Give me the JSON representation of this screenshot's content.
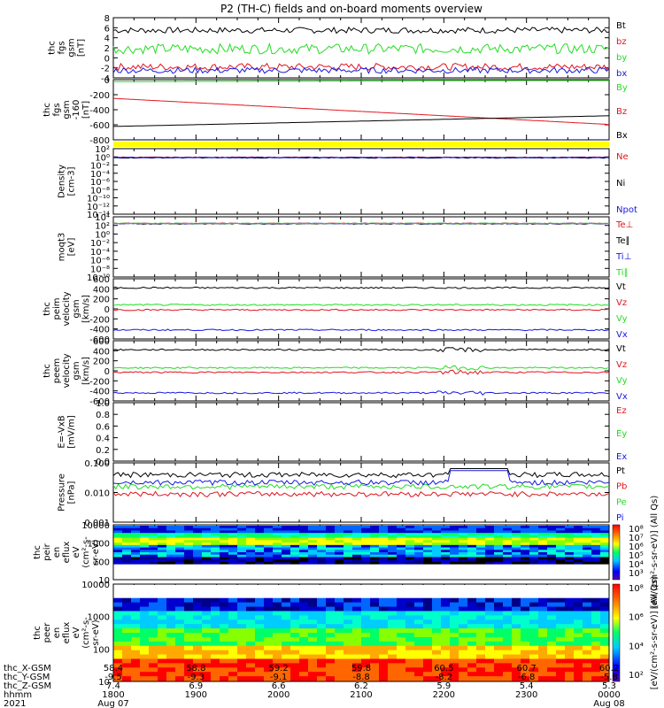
{
  "title": "P2 (TH-C) fields and on-board moments overview",
  "x_rows": [
    {
      "label": "thc_X-GSM",
      "values": [
        "58.4",
        "58.8",
        "59.2",
        "59.8",
        "60.5",
        "60.7",
        "60.2"
      ]
    },
    {
      "label": "thc_Y-GSM",
      "values": [
        "-9.5",
        "-9.3",
        "-9.1",
        "-8.8",
        "-8.2",
        "-6.8",
        "-5.8"
      ]
    },
    {
      "label": "thc_Z-GSM",
      "values": [
        "7.4",
        "6.9",
        "6.6",
        "6.2",
        "5.9",
        "5.4",
        "5.3"
      ]
    },
    {
      "label": "hhmm",
      "values": [
        "1800",
        "1900",
        "2000",
        "2100",
        "2200",
        "2300",
        "0000"
      ]
    }
  ],
  "x_date_start": "Aug 07",
  "x_date_end": "Aug 08",
  "year": "2021",
  "colors": {
    "black": "#000000",
    "red": "#e0141e",
    "green": "#22dd22",
    "blue": "#1818e0",
    "yellow": "#ffff00"
  },
  "chart_data": [
    {
      "type": "line",
      "ylabel": [
        "thc",
        "fgs",
        "gsm",
        "[nT]"
      ],
      "ylim": [
        -4,
        8
      ],
      "yticks": [
        "8",
        "6",
        "4",
        "2",
        "0",
        "-2",
        "-4"
      ],
      "series": [
        {
          "name": "Bt",
          "color": "black",
          "mean": 5.5,
          "noise": 0.6
        },
        {
          "name": "bz",
          "color": "red",
          "mean": -1.8,
          "noise": 0.7
        },
        {
          "name": "by",
          "color": "green",
          "mean": 1.8,
          "noise": 1.0
        },
        {
          "name": "bx",
          "color": "blue",
          "mean": -2.5,
          "noise": 0.6
        }
      ]
    },
    {
      "type": "line",
      "ylabel": [
        "thc",
        "fgs",
        "gsm",
        "-160",
        "[nT]"
      ],
      "ylim": [
        -900,
        0
      ],
      "yticks": [
        "0",
        "-200",
        "-400",
        "-600",
        "-800"
      ],
      "series": [
        {
          "name": "By",
          "color": "green",
          "start": -30,
          "end": -10
        },
        {
          "name": "Bz",
          "color": "red",
          "start": -280,
          "end": -670
        },
        {
          "name": "Bx",
          "color": "black",
          "start": -700,
          "end": -540
        }
      ]
    },
    {
      "type": "bar",
      "band": "state",
      "color": "yellow"
    },
    {
      "type": "line",
      "ylabel": [
        "Density",
        "[cm-3]"
      ],
      "ylog": [
        -14,
        2
      ],
      "yticks": [
        "10²",
        "10⁰",
        "10⁻²",
        "10⁻⁴",
        "10⁻⁶",
        "10⁻⁸",
        "10⁻¹⁰",
        "10⁻¹²",
        "10⁻¹⁴"
      ],
      "series": [
        {
          "name": "Ne",
          "color": "red",
          "value": 0.8
        },
        {
          "name": "Ni",
          "color": "black",
          "value": 0.6
        },
        {
          "name": "Npot",
          "color": "blue",
          "value": 0.7
        }
      ]
    },
    {
      "type": "line",
      "ylabel": [
        "moqt3",
        "[eV]"
      ],
      "ylog": [
        -10,
        4
      ],
      "yticks": [
        "10⁴",
        "10²",
        "10⁰",
        "10⁻²",
        "10⁻⁴",
        "10⁻⁶",
        "10⁻⁸",
        "10⁻¹⁰"
      ],
      "series": [
        {
          "name": "Te⊥",
          "color": "red",
          "value": 300
        },
        {
          "name": "Te∥",
          "color": "black",
          "value": 250
        },
        {
          "name": "Ti⊥",
          "color": "blue",
          "value": 280
        },
        {
          "name": "Ti∥",
          "color": "green",
          "value": 290
        }
      ]
    },
    {
      "type": "line",
      "ylabel": [
        "thc",
        "peim",
        "velocity",
        "gsm",
        "[km/s]"
      ],
      "ylim": [
        -600,
        600
      ],
      "yticks": [
        "600",
        "400",
        "200",
        "0",
        "-200",
        "-400",
        "-600"
      ],
      "series": [
        {
          "name": "Vt",
          "color": "black",
          "value": 420
        },
        {
          "name": "Vz",
          "color": "red",
          "value": -20
        },
        {
          "name": "Vy",
          "color": "green",
          "value": 80
        },
        {
          "name": "Vx",
          "color": "blue",
          "value": -420
        }
      ]
    },
    {
      "type": "line",
      "ylabel": [
        "thc",
        "peem",
        "velocity",
        "gsm",
        "[km/s]"
      ],
      "ylim": [
        -600,
        600
      ],
      "yticks": [
        "600",
        "400",
        "200",
        "0",
        "-200",
        "-400",
        "-600"
      ],
      "series": [
        {
          "name": "Vt",
          "color": "black",
          "value": 420
        },
        {
          "name": "Vz",
          "color": "red",
          "value": -30
        },
        {
          "name": "Vy",
          "color": "green",
          "value": 60
        },
        {
          "name": "Vx",
          "color": "blue",
          "value": -440
        }
      ]
    },
    {
      "type": "line",
      "ylabel": [
        "E=-VxB",
        "[mV/m]"
      ],
      "ylim": [
        0,
        1
      ],
      "yticks": [
        "1.0",
        "0.8",
        "0.6",
        "0.4",
        "0.2",
        "0.0"
      ],
      "series": [
        {
          "name": "Ez",
          "color": "red"
        },
        {
          "name": "Ey",
          "color": "green"
        },
        {
          "name": "Ex",
          "color": "blue"
        }
      ]
    },
    {
      "type": "line",
      "ylabel": [
        "Pressure",
        "[nPa]"
      ],
      "ylog": [
        -3,
        -1
      ],
      "yticks": [
        "0.100",
        "0.010",
        "0.001"
      ],
      "series": [
        {
          "name": "Pt",
          "color": "black",
          "value": 0.04
        },
        {
          "name": "Pb",
          "color": "red",
          "value": 0.009
        },
        {
          "name": "Pe",
          "color": "green",
          "value": 0.016
        },
        {
          "name": "Pi",
          "color": "blue",
          "value": 0.022
        }
      ]
    },
    {
      "type": "heatmap",
      "ylabel": [
        "thc",
        "peir",
        "en",
        "eflux",
        "eV",
        "(cm²-s-",
        "sr-eV)"
      ],
      "yticks": [
        "10000",
        "1000",
        "100",
        "10"
      ],
      "colorbar_ticks": [
        "10⁸",
        "10⁷",
        "10⁶",
        "10⁵",
        "10⁴",
        "10³"
      ]
    },
    {
      "type": "heatmap",
      "ylabel": [
        "thc",
        "peer",
        "en",
        "eflux",
        "eV",
        "(cm²-s-",
        "sr-eV)"
      ],
      "yticks": [
        "10000",
        "1000",
        "100",
        "10"
      ],
      "colorbar_ticks": [
        "10⁸",
        "10⁶",
        "10⁴",
        "10²"
      ]
    }
  ],
  "colorbar_label_top": "[eV/(cm²-s-sr-eV)] (All Qs)",
  "colorbar_label_bottom": "[eV/(cm²-s-sr-eV)] (All Qs)"
}
